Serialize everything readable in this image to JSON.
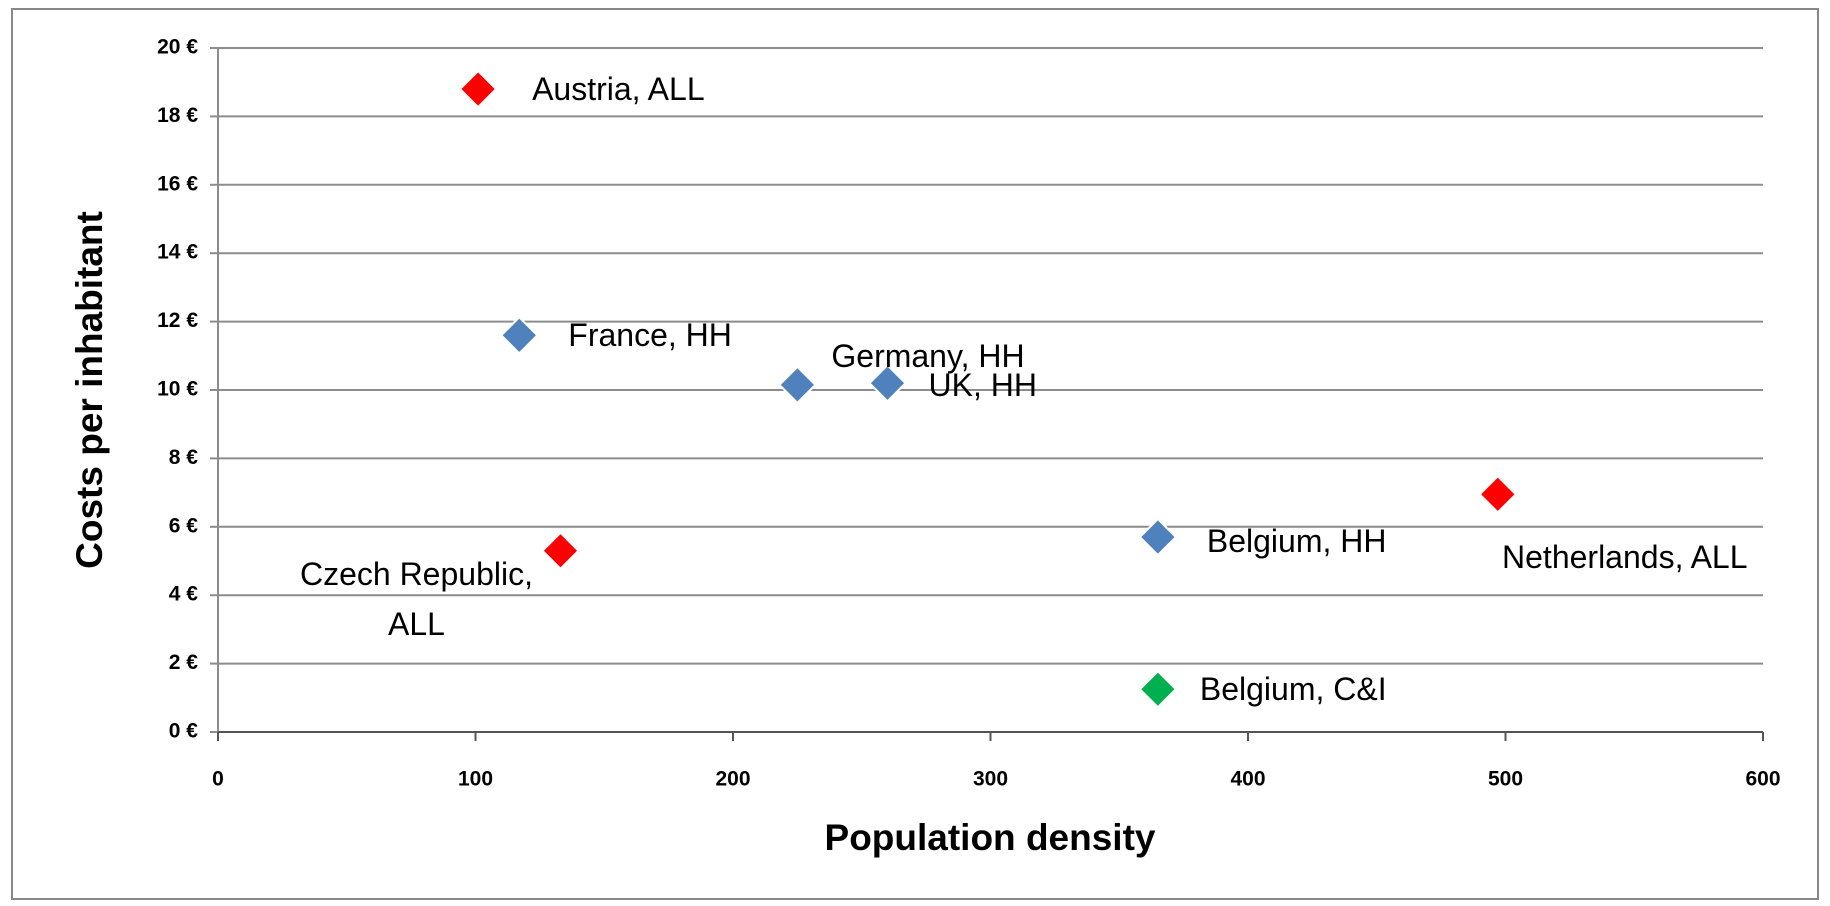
{
  "chart_data": {
    "type": "scatter",
    "x_label": "Population density",
    "y_label": "Costs per inhabitant",
    "x": [
      101,
      117,
      225,
      260,
      133,
      365,
      497,
      365
    ],
    "values": [
      18.8,
      11.6,
      10.15,
      10.2,
      5.3,
      5.7,
      6.95,
      1.25
    ],
    "point_labels": [
      "Austria, ALL",
      "France, HH",
      "Germany, HH",
      "UK, HH",
      "Czech Republic, ALL",
      "Belgium, HH",
      "Netherlands, ALL",
      "Belgium, C&I"
    ],
    "colors": [
      "#ff0000",
      "#4f81bd",
      "#4f81bd",
      "#4f81bd",
      "#ff0000",
      "#4f81bd",
      "#ff0000",
      "#00b050"
    ],
    "xlim": [
      0,
      600
    ],
    "xticks": [
      0,
      100,
      200,
      300,
      400,
      500,
      600
    ],
    "ylim": [
      0,
      20
    ],
    "yticks": [
      {
        "value": 0,
        "label": "0 €"
      },
      {
        "value": 2,
        "label": "2 €"
      },
      {
        "value": 4,
        "label": "4 €"
      },
      {
        "value": 6,
        "label": "6 €"
      },
      {
        "value": 8,
        "label": "8 €"
      },
      {
        "value": 10,
        "label": "10 €"
      },
      {
        "value": 12,
        "label": "12 €"
      },
      {
        "value": 14,
        "label": "14 €"
      },
      {
        "value": 16,
        "label": "16 €"
      },
      {
        "value": 18,
        "label": "18 €"
      },
      {
        "value": 20,
        "label": "20 €"
      }
    ],
    "grid": true
  }
}
